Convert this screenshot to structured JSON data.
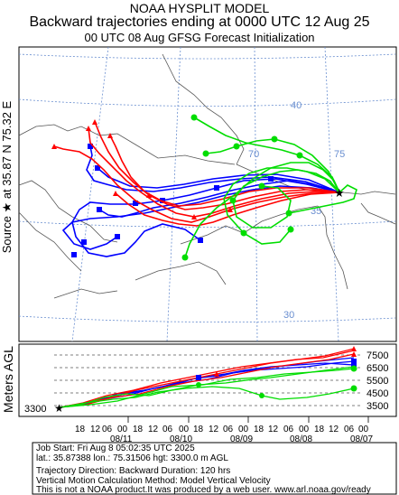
{
  "header": {
    "model": "NOAA HYSPLIT MODEL",
    "title": "Backward trajectories ending at 0000 UTC 12 Aug 25",
    "subtitle": "00 UTC 08 Aug    GFSG  Forecast Initialization"
  },
  "source_label": "Source ★ at   35.87 N   75.32 E",
  "map": {
    "lat_labels": [
      "40",
      "35",
      "30"
    ],
    "lon_labels": [
      "75",
      "70"
    ]
  },
  "vertical": {
    "ylabel": "Meters AGL",
    "ticks": [
      "7500",
      "6500",
      "5500",
      "4500",
      "3500"
    ],
    "start_height": "3300",
    "hours": [
      "18",
      "12",
      "06",
      "00",
      "18",
      "12",
      "06",
      "00",
      "18",
      "12",
      "06",
      "00",
      "18",
      "12",
      "06",
      "00",
      "18",
      "12",
      "06",
      "00"
    ],
    "dates": [
      "08/11",
      "08/10",
      "08/09",
      "08/08",
      "08/07"
    ]
  },
  "info": [
    "Job Start: Fri Aug  8 05:02:35 UTC 2025",
    "lat.: 35.87388   lon.: 75.31506   hgt: 3300.0 m AGL",
    "",
    "Trajectory Direction: Backward      Duration: 120 hrs",
    "Vertical Motion Calculation Method: Model Vertical Velocity",
    "This is not a NOAA product.It was produced by a web user. www.arl.noaa.gov/ready"
  ],
  "colors": {
    "red": "#ff0000",
    "blue": "#0000ff",
    "green": "#00dd00",
    "grid": "#6a8fd0",
    "border": "#555555"
  }
}
